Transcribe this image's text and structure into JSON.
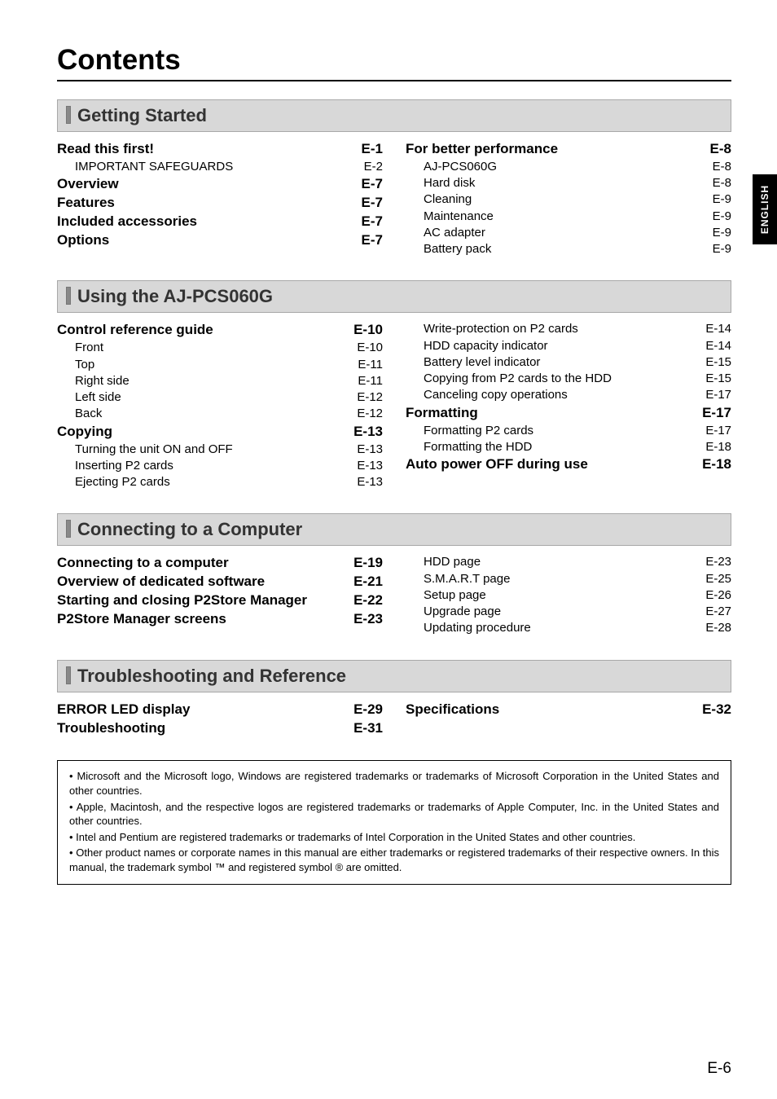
{
  "page": {
    "title": "Contents",
    "footer_page": "E-6",
    "side_tab": "ENGLISH",
    "fonts": {
      "title_pt": 35,
      "section_pt": 22,
      "main_pt": 17,
      "sub_pt": 15,
      "note_pt": 13
    },
    "colors": {
      "bg": "#ffffff",
      "text": "#000000",
      "section_bg": "#d8d8d8",
      "section_border": "#a8a8a8",
      "section_text": "#333333",
      "tab_bg": "#000000",
      "tab_text": "#ffffff"
    }
  },
  "sections": [
    {
      "header": "Getting Started",
      "left": [
        {
          "t": "main",
          "label": "Read this first!",
          "page": "E-1"
        },
        {
          "t": "sub",
          "label": "IMPORTANT SAFEGUARDS",
          "page": "E-2"
        },
        {
          "t": "main",
          "label": "Overview",
          "page": "E-7"
        },
        {
          "t": "main",
          "label": "Features",
          "page": "E-7"
        },
        {
          "t": "main",
          "label": "Included accessories",
          "page": "E-7"
        },
        {
          "t": "main",
          "label": "Options",
          "page": "E-7"
        }
      ],
      "right": [
        {
          "t": "main",
          "label": "For better performance",
          "page": "E-8"
        },
        {
          "t": "sub",
          "label": "AJ-PCS060G",
          "page": "E-8"
        },
        {
          "t": "sub",
          "label": "Hard disk",
          "page": "E-8"
        },
        {
          "t": "sub",
          "label": "Cleaning",
          "page": "E-9"
        },
        {
          "t": "sub",
          "label": "Maintenance",
          "page": "E-9"
        },
        {
          "t": "sub",
          "label": "AC adapter",
          "page": "E-9"
        },
        {
          "t": "sub",
          "label": "Battery pack",
          "page": "E-9"
        }
      ]
    },
    {
      "header": "Using the AJ-PCS060G",
      "left": [
        {
          "t": "main",
          "label": "Control reference guide",
          "page": "E-10"
        },
        {
          "t": "sub",
          "label": "Front",
          "page": "E-10"
        },
        {
          "t": "sub",
          "label": "Top",
          "page": "E-11"
        },
        {
          "t": "sub",
          "label": "Right side",
          "page": "E-11"
        },
        {
          "t": "sub",
          "label": "Left side",
          "page": "E-12"
        },
        {
          "t": "sub",
          "label": "Back",
          "page": "E-12"
        },
        {
          "t": "main",
          "label": "Copying",
          "page": "E-13"
        },
        {
          "t": "sub",
          "label": "Turning the unit ON and OFF",
          "page": "E-13"
        },
        {
          "t": "sub",
          "label": "Inserting P2 cards",
          "page": "E-13"
        },
        {
          "t": "sub",
          "label": "Ejecting P2 cards",
          "page": "E-13"
        }
      ],
      "right": [
        {
          "t": "sub",
          "label": "Write-protection on P2 cards",
          "page": "E-14"
        },
        {
          "t": "sub",
          "label": "HDD capacity indicator",
          "page": "E-14"
        },
        {
          "t": "sub",
          "label": "Battery level indicator",
          "page": "E-15"
        },
        {
          "t": "sub",
          "label": "Copying from P2 cards to the HDD",
          "page": "E-15"
        },
        {
          "t": "sub",
          "label": "Canceling copy operations",
          "page": "E-17"
        },
        {
          "t": "main",
          "label": "Formatting",
          "page": "E-17"
        },
        {
          "t": "sub",
          "label": "Formatting P2 cards",
          "page": "E-17"
        },
        {
          "t": "sub",
          "label": "Formatting the HDD",
          "page": "E-18"
        },
        {
          "t": "main",
          "label": "Auto power OFF during use",
          "page": "E-18"
        }
      ]
    },
    {
      "header": "Connecting to a Computer",
      "left": [
        {
          "t": "main",
          "label": "Connecting to a computer",
          "page": "E-19"
        },
        {
          "t": "main",
          "label": "Overview of dedicated software",
          "page": "E-21"
        },
        {
          "t": "main",
          "label": "Starting and closing P2Store Manager",
          "page": "E-22"
        },
        {
          "t": "main",
          "label": "P2Store Manager screens",
          "page": "E-23"
        }
      ],
      "right": [
        {
          "t": "sub",
          "label": "HDD page",
          "page": "E-23"
        },
        {
          "t": "sub",
          "label": "S.M.A.R.T page",
          "page": "E-25"
        },
        {
          "t": "sub",
          "label": "Setup page",
          "page": "E-26"
        },
        {
          "t": "sub",
          "label": "Upgrade page",
          "page": "E-27"
        },
        {
          "t": "sub",
          "label": "Updating procedure",
          "page": "E-28"
        }
      ]
    },
    {
      "header": "Troubleshooting and Reference",
      "left": [
        {
          "t": "main",
          "label": "ERROR LED display",
          "page": "E-29"
        },
        {
          "t": "main",
          "label": "Troubleshooting",
          "page": "E-31"
        }
      ],
      "right": [
        {
          "t": "main",
          "label": "Specifications",
          "page": "E-32"
        }
      ]
    }
  ],
  "trademarks": [
    "• Microsoft and the Microsoft logo, Windows are registered trademarks or trademarks of Microsoft Corporation in the United States and other countries.",
    "• Apple, Macintosh, and the respective logos are registered trademarks or trademarks of Apple Computer, Inc. in the United States and other countries.",
    "• Intel and Pentium are registered trademarks or trademarks of Intel Corporation in the United States and other countries.",
    "• Other product names or corporate names in this manual are either trademarks or registered trademarks of their respective owners. In this manual, the trademark symbol ™ and registered symbol ® are omitted."
  ]
}
